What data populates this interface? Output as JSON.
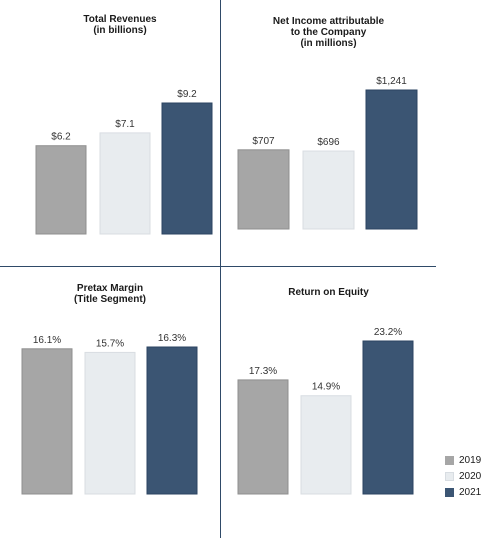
{
  "chart_data": [
    {
      "type": "bar",
      "title": "Total Revenues\n(in billions)",
      "categories": [
        "2019",
        "2020",
        "2021"
      ],
      "values": [
        6.2,
        7.1,
        9.2
      ],
      "labels": [
        "$6.2",
        "$7.1",
        "$9.2"
      ],
      "ylim": [
        0,
        9.2
      ]
    },
    {
      "type": "bar",
      "title": "Net Income attributable\nto the Company\n(in millions)",
      "categories": [
        "2019",
        "2020",
        "2021"
      ],
      "values": [
        707,
        696,
        1241
      ],
      "labels": [
        "$707",
        "$696",
        "$1,241"
      ],
      "ylim": [
        0,
        1241
      ]
    },
    {
      "type": "bar",
      "title": "Pretax Margin\n(Title Segment)",
      "categories": [
        "2019",
        "2020",
        "2021"
      ],
      "values": [
        16.1,
        15.7,
        16.3
      ],
      "labels": [
        "16.1%",
        "15.7%",
        "16.3%"
      ],
      "ylim": [
        0,
        16.3
      ]
    },
    {
      "type": "bar",
      "title": "Return on Equity",
      "categories": [
        "2019",
        "2020",
        "2021"
      ],
      "values": [
        17.3,
        14.9,
        23.2
      ],
      "labels": [
        "17.3%",
        "14.9%",
        "23.2%"
      ],
      "ylim": [
        0,
        23.2
      ]
    }
  ],
  "legend": [
    {
      "label": "2019",
      "color": "#a6a6a6"
    },
    {
      "label": "2020",
      "color": "#e8ecef"
    },
    {
      "label": "2021",
      "color": "#3b5573"
    }
  ],
  "colors": {
    "border_2020": "#d8dde2",
    "divider": "#2f4a68"
  }
}
